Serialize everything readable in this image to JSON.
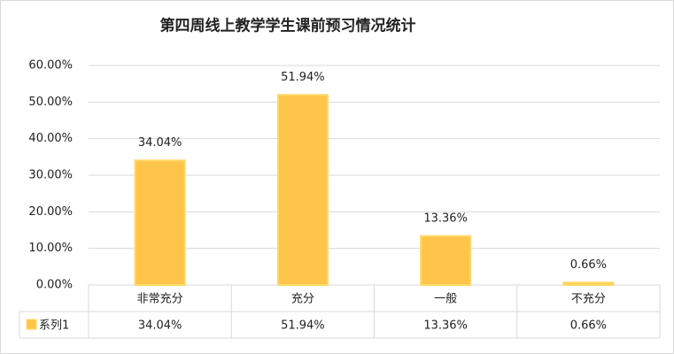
{
  "chart_data": {
    "type": "bar",
    "title": "第四周线上教学学生课前预习情况统计",
    "categories": [
      "非常充分",
      "充分",
      "一般",
      "不充分"
    ],
    "series": [
      {
        "name": "系列1",
        "color": "#ffc54a",
        "values": [
          34.04,
          51.94,
          13.36,
          0.66
        ],
        "value_labels": [
          "34.04%",
          "51.94%",
          "13.36%",
          "0.66%"
        ]
      }
    ],
    "ylim": [
      0,
      60
    ],
    "yticks": [
      {
        "value": 0,
        "label": "0.00%"
      },
      {
        "value": 10,
        "label": "10.00%"
      },
      {
        "value": 20,
        "label": "20.00%"
      },
      {
        "value": 30,
        "label": "30.00%"
      },
      {
        "value": 40,
        "label": "40.00%"
      },
      {
        "value": 50,
        "label": "50.00%"
      },
      {
        "value": 60,
        "label": "60.00%"
      }
    ],
    "grid": true
  }
}
